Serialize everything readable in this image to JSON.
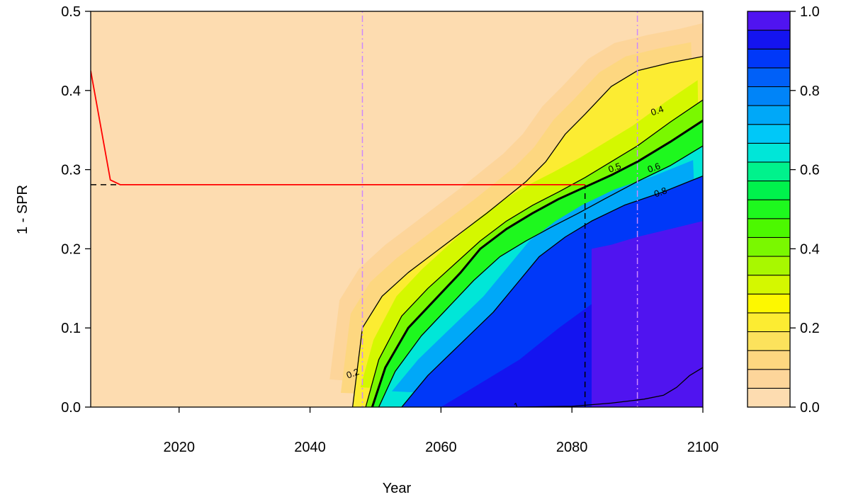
{
  "chart_data": {
    "type": "heatmap",
    "title": "",
    "xlabel": "Year",
    "ylabel": "1 - SPR",
    "xlim": [
      2006.5,
      2100
    ],
    "ylim": [
      0,
      0.5
    ],
    "x_ticks": [
      "2020",
      "2040",
      "2060",
      "2080",
      "2100"
    ],
    "y_ticks": [
      "0.0",
      "0.1",
      "0.2",
      "0.3",
      "0.4",
      "0.5"
    ],
    "colorbar": {
      "ticks": [
        "0.0",
        "0.2",
        "0.4",
        "0.6",
        "0.8",
        "1.0"
      ],
      "levels": [
        0,
        0.05,
        0.1,
        0.15,
        0.2,
        0.25,
        0.3,
        0.35,
        0.4,
        0.45,
        0.5,
        0.55,
        0.6,
        0.65,
        0.7,
        0.75,
        0.8,
        0.85,
        0.9,
        0.95,
        1.0
      ],
      "colors": [
        "#FDDCB0",
        "#FDD59A",
        "#FDD780",
        "#FCE25C",
        "#FCEC32",
        "#FDF800",
        "#D4F800",
        "#A8F800",
        "#7AF800",
        "#4CF800",
        "#1EF81E",
        "#00F24C",
        "#00F28C",
        "#00E6D8",
        "#00C8F8",
        "#00A8F8",
        "#0084F8",
        "#0060F8",
        "#0038F8",
        "#1414F0",
        "#5014F0"
      ]
    },
    "contours": [
      {
        "level": "0.2",
        "x": [
          2046.5,
          2048,
          2051,
          2055,
          2059,
          2063,
          2067,
          2070,
          2073,
          2076,
          2079,
          2082,
          2086,
          2090,
          2095,
          2100
        ],
        "y": [
          0,
          0.1,
          0.14,
          0.17,
          0.195,
          0.22,
          0.245,
          0.265,
          0.285,
          0.31,
          0.345,
          0.37,
          0.405,
          0.425,
          0.435,
          0.443
        ]
      },
      {
        "level": "0.4",
        "x": [
          2048.5,
          2050.5,
          2054,
          2058,
          2062,
          2066,
          2070,
          2074,
          2078,
          2082,
          2086,
          2090,
          2095,
          2100
        ],
        "y": [
          0,
          0.06,
          0.115,
          0.15,
          0.18,
          0.21,
          0.235,
          0.255,
          0.272,
          0.29,
          0.31,
          0.33,
          0.36,
          0.388
        ]
      },
      {
        "level": "0.5",
        "x": [
          2049.5,
          2051.5,
          2055,
          2059,
          2063,
          2066,
          2070,
          2074,
          2078,
          2082,
          2086,
          2090,
          2095,
          2100
        ],
        "y": [
          0,
          0.05,
          0.1,
          0.135,
          0.17,
          0.2,
          0.225,
          0.245,
          0.263,
          0.278,
          0.293,
          0.31,
          0.335,
          0.362
        ]
      },
      {
        "level": "0.6",
        "x": [
          2050.5,
          2053,
          2057,
          2061,
          2065,
          2069,
          2073,
          2077,
          2081,
          2085,
          2090,
          2095,
          2100
        ],
        "y": [
          0,
          0.045,
          0.09,
          0.125,
          0.16,
          0.19,
          0.21,
          0.228,
          0.245,
          0.263,
          0.285,
          0.305,
          0.33
        ]
      },
      {
        "level": "0.8",
        "x": [
          2054,
          2058,
          2063,
          2068,
          2072,
          2075,
          2079,
          2083,
          2088,
          2094,
          2100
        ],
        "y": [
          0,
          0.04,
          0.08,
          0.12,
          0.16,
          0.19,
          0.215,
          0.235,
          0.255,
          0.272,
          0.292
        ]
      },
      {
        "level": "1",
        "x": [
          2072,
          2080,
          2086,
          2091,
          2094,
          2096,
          2098,
          2100
        ],
        "y": [
          0,
          0.001,
          0.005,
          0.01,
          0.015,
          0.025,
          0.04,
          0.05
        ]
      }
    ],
    "contour_labels": [
      {
        "text": "0.2",
        "x": 2046.5,
        "y": 0.043
      },
      {
        "text": "0.4",
        "x": 2093,
        "y": 0.375
      },
      {
        "text": "0.5",
        "x": 2086.5,
        "y": 0.303
      },
      {
        "text": "0.6",
        "x": 2092.5,
        "y": 0.303
      },
      {
        "text": "0.8",
        "x": 2093.5,
        "y": 0.272
      },
      {
        "text": "1",
        "x": 2071.5,
        "y": 0.002
      }
    ],
    "series": [
      {
        "x": [
          2006.5,
          2009.5,
          2011,
          2082
        ],
        "y": [
          0.425,
          0.287,
          0.281,
          0.281
        ],
        "color": "#ff0000"
      }
    ],
    "reference_lines": {
      "horizontal_dashed": {
        "y": 0.281,
        "x": [
          2006.5,
          2011
        ]
      },
      "vertical_dashed": {
        "x": 2082,
        "y": [
          0,
          0.281
        ]
      },
      "vertical_dotdash": [
        2048,
        2090
      ],
      "dotdash_color": "#cc88ff"
    }
  }
}
